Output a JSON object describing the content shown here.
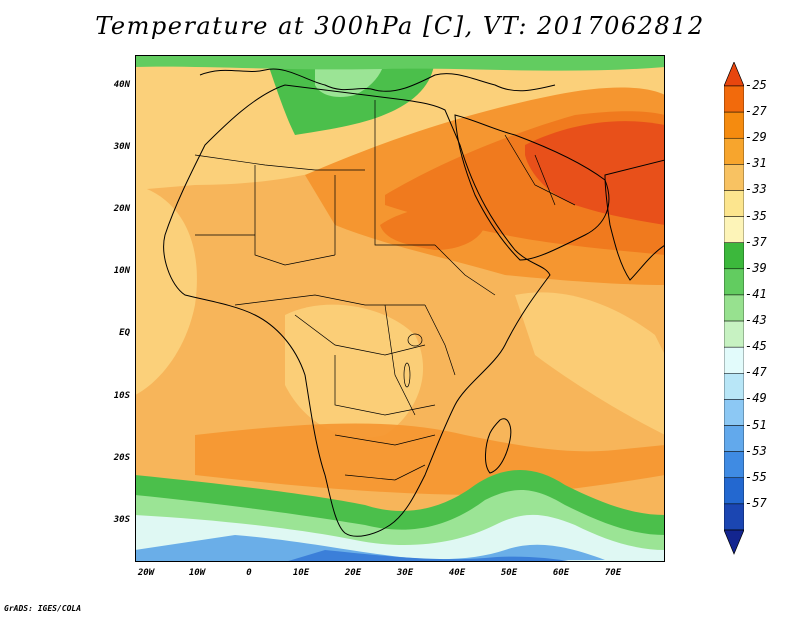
{
  "title": "Temperature at 300hPa [C], VT: 2017062812",
  "credit": "GrADS: IGES/COLA",
  "lat_labels": [
    "40N",
    "30N",
    "20N",
    "10N",
    "EQ",
    "10S",
    "20S",
    "30S"
  ],
  "lon_labels": [
    "20W",
    "10W",
    "0",
    "10E",
    "20E",
    "30E",
    "40E",
    "50E",
    "60E",
    "70E"
  ],
  "colorbar": {
    "labels": [
      "-25",
      "-27",
      "-29",
      "-31",
      "-33",
      "-35",
      "-37",
      "-39",
      "-41",
      "-43",
      "-45",
      "-47",
      "-49",
      "-51",
      "-53",
      "-55",
      "-57"
    ],
    "colors": [
      "#e8460e",
      "#f26a0c",
      "#f58b0f",
      "#f7a52d",
      "#f8c262",
      "#fce58e",
      "#fdf4b8",
      "#3cb83c",
      "#62cc60",
      "#97e18f",
      "#c7f2c2",
      "#e2fbfb",
      "#b8e6f7",
      "#8cc8f4",
      "#62a9ec",
      "#3f8be3",
      "#2368d0",
      "#1b46b2",
      "#13258f"
    ]
  },
  "map_colors": {
    "ocean_base": "#f7b55a",
    "sahara": "#fbd07a",
    "hot": "#f59630",
    "hotter": "#f07a1e",
    "hottest": "#e8501a",
    "green": "#4bbf4b",
    "light_green": "#9be495",
    "pale": "#dff8f3",
    "blue": "#6aaee8",
    "deep_blue": "#3b7fd9",
    "coast": "#000000"
  }
}
